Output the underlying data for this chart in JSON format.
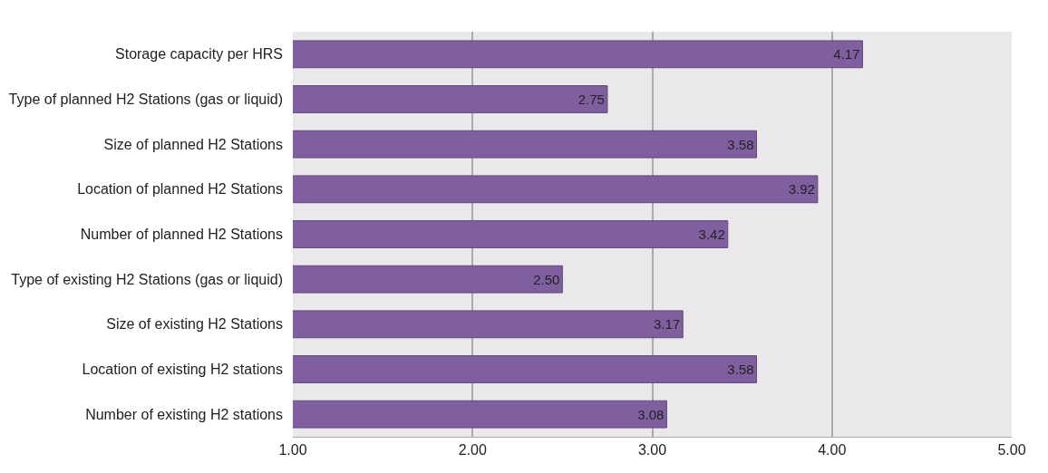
{
  "chart_data": {
    "type": "bar",
    "orientation": "horizontal",
    "categories": [
      "Storage capacity per HRS",
      "Type of planned H2 Stations (gas or liquid)",
      "Size of planned H2 Stations",
      "Location of planned H2 Stations",
      "Number of planned H2 Stations",
      "Type of existing H2 Stations (gas or liquid)",
      "Size of existing H2 Stations",
      "Location of existing H2 stations",
      "Number of existing H2 stations"
    ],
    "values": [
      4.17,
      2.75,
      3.58,
      3.92,
      3.42,
      2.5,
      3.17,
      3.58,
      3.08
    ],
    "value_labels": [
      "4.17",
      "2.75",
      "3.58",
      "3.92",
      "3.42",
      "2.50",
      "3.17",
      "3.58",
      "3.08"
    ],
    "color": "#7f5f9f",
    "xlim": [
      1,
      5
    ],
    "xticks": [
      {
        "value": 1,
        "label": "1.00"
      },
      {
        "value": 2,
        "label": "2.00"
      },
      {
        "value": 3,
        "label": "3.00"
      },
      {
        "value": 4,
        "label": "4.00"
      },
      {
        "value": 5,
        "label": "5.00"
      }
    ],
    "grid": "x",
    "legend": false
  }
}
